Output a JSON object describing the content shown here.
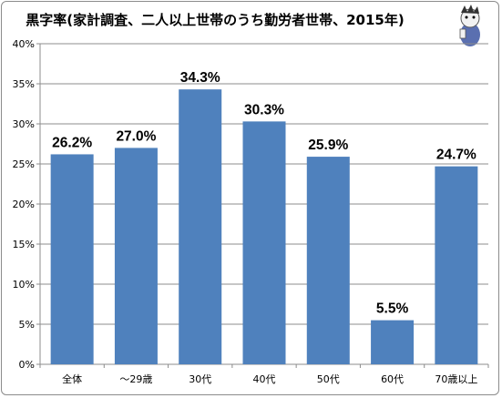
{
  "chart_data": {
    "type": "bar",
    "title": "黒字率(家計調査、二人以上世帯のうち勤労者世帯、2015年)",
    "categories": [
      "全体",
      "～29歳",
      "30代",
      "40代",
      "50代",
      "60代",
      "70歳以上"
    ],
    "values": [
      26.2,
      27.0,
      34.3,
      30.3,
      25.9,
      5.5,
      24.7
    ],
    "data_labels": [
      "26.2%",
      "27.0%",
      "34.3%",
      "30.3%",
      "25.9%",
      "5.5%",
      "24.7%"
    ],
    "y_ticks": [
      "0%",
      "5%",
      "10%",
      "15%",
      "20%",
      "25%",
      "30%",
      "35%",
      "40%"
    ],
    "ylim": [
      0,
      40
    ],
    "ytick_step": 5,
    "grid": true,
    "legend": "none",
    "bar_color": "#4f81bd",
    "mascot_icon": "mascot-icon"
  }
}
